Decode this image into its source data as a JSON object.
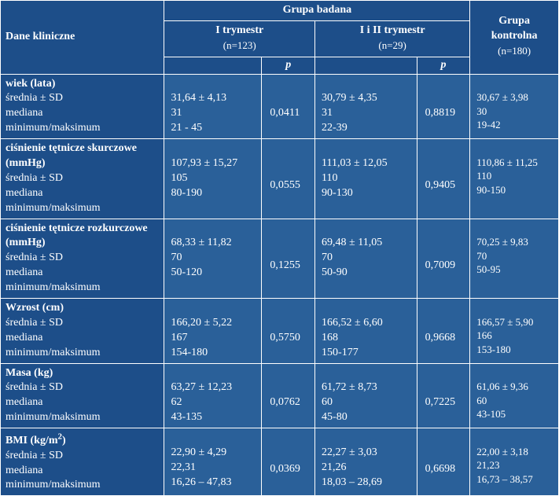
{
  "headers": {
    "dane": "Dane kliniczne",
    "grupa_badana": "Grupa badana",
    "t1": "I trymestr",
    "t1_n": "(n=123)",
    "t12": "I i II trymestr",
    "t12_n": "(n=29)",
    "kontrolna": "Grupa kontrolna",
    "kontrolna_n": "(n=180)",
    "p": "p"
  },
  "row_labels": {
    "mean_sd": "średnia  ± SD",
    "mean_sd2": "średnia ± SD",
    "median": "mediana",
    "minmax": "minimum/maksimum"
  },
  "rows": [
    {
      "title": "wiek (lata)",
      "label_set": "a",
      "t1": [
        "31,64 ± 4,13",
        "31",
        "21 - 45"
      ],
      "p1": "0,0411",
      "t12": [
        "30,79 ± 4,35",
        "31",
        "22-39"
      ],
      "p2": "0,8819",
      "ctrl": [
        "30,67 ± 3,98",
        "30",
        "19-42"
      ]
    },
    {
      "title": "ciśnienie tętnicze skurczowe (mmHg)",
      "label_set": "b",
      "t1": [
        "107,93 ± 15,27",
        "105",
        "80-190"
      ],
      "p1": "0,0555",
      "t12": [
        "111,03 ± 12,05",
        "110",
        "90-130"
      ],
      "p2": "0,9405",
      "ctrl": [
        "110,86 ± 11,25",
        "110",
        "90-150"
      ]
    },
    {
      "title": "ciśnienie tętnicze rozkurczowe (mmHg)",
      "label_set": "b",
      "t1": [
        "68,33 ± 11,82",
        "70",
        "50-120"
      ],
      "p1": "0,1255",
      "t12": [
        "69,48 ± 11,05",
        "70",
        "50-90"
      ],
      "p2": "0,7009",
      "ctrl": [
        "70,25 ± 9,83",
        "70",
        "50-95"
      ]
    },
    {
      "title": "Wzrost (cm)",
      "label_set": "b",
      "t1": [
        "166,20 ± 5,22",
        "167",
        "154-180"
      ],
      "p1": "0,5750",
      "t12": [
        "166,52 ±  6,60",
        "168",
        "150-177"
      ],
      "p2": "0,9668",
      "ctrl": [
        "166,57 ± 5,90",
        "166",
        "153-180"
      ]
    },
    {
      "title": "Masa (kg)",
      "label_set": "b",
      "t1": [
        "63,27 ± 12,23",
        "62",
        "43-135"
      ],
      "p1": "0,0762",
      "t12": [
        "61,72 ± 8,73",
        "60",
        "45-80"
      ],
      "p2": "0,7225",
      "ctrl": [
        "61,06 ± 9,36",
        "60",
        "43-105"
      ]
    },
    {
      "title_html": "BMI (kg/m<span class=\"sup\">2</span>)",
      "label_set": "b",
      "t1": [
        "22,90 ± 4,29",
        "22,31",
        "16,26 – 47,83"
      ],
      "p1": "0,0369",
      "t12": [
        "22,27 ± 3,03",
        "21,26",
        "18,03 – 28,69"
      ],
      "p2": "0,6698",
      "ctrl": [
        "22,00  ± 3,18",
        "21,23",
        "16,73 – 38,57"
      ]
    }
  ]
}
